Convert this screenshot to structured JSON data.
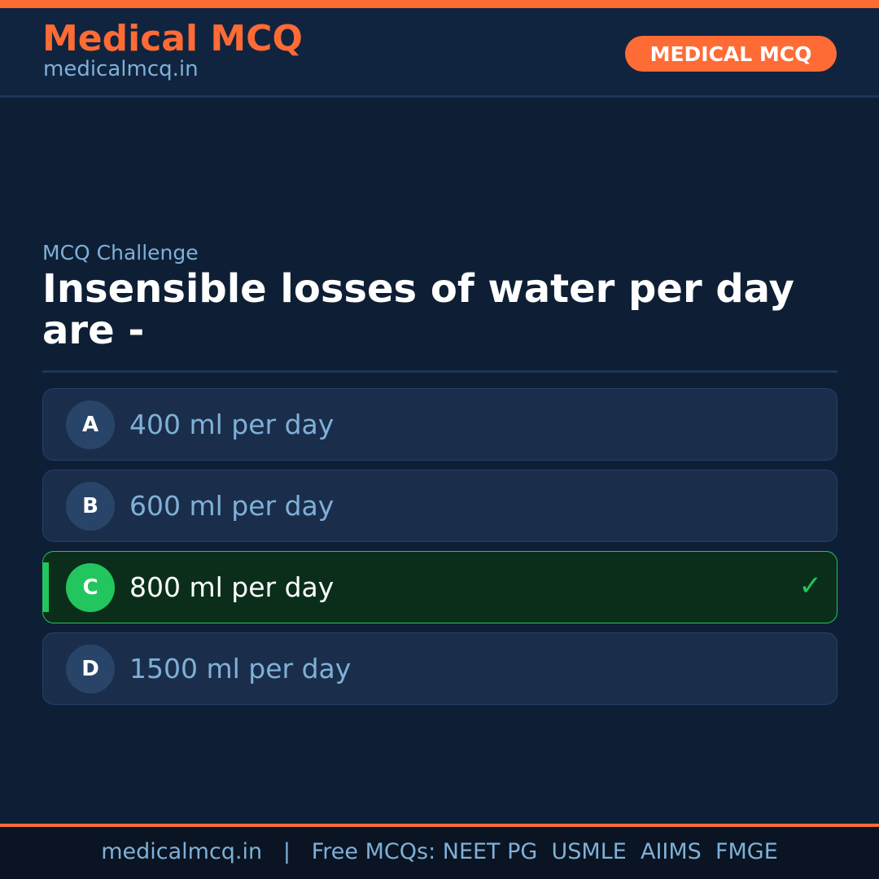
{
  "header": {
    "brand": "Medical MCQ",
    "site": "medicalmcq.in",
    "badge": "MEDICAL MCQ"
  },
  "colors": {
    "accent": "#ff6b35",
    "correct": "#22c55e",
    "background": "#0e1f35"
  },
  "main": {
    "kicker": "MCQ Challenge",
    "question": "Insensible losses of water per day are -",
    "options": [
      {
        "letter": "A",
        "text": "400 ml per day"
      },
      {
        "letter": "B",
        "text": "600 ml per day"
      },
      {
        "letter": "C",
        "text": "800 ml per day",
        "correct": true,
        "icon": "check-icon",
        "check": "✓"
      },
      {
        "letter": "D",
        "text": "1500 ml per day"
      }
    ]
  },
  "footer": {
    "text": "medicalmcq.in   |   Free MCQs: NEET PG  USMLE  AIIMS  FMGE"
  }
}
